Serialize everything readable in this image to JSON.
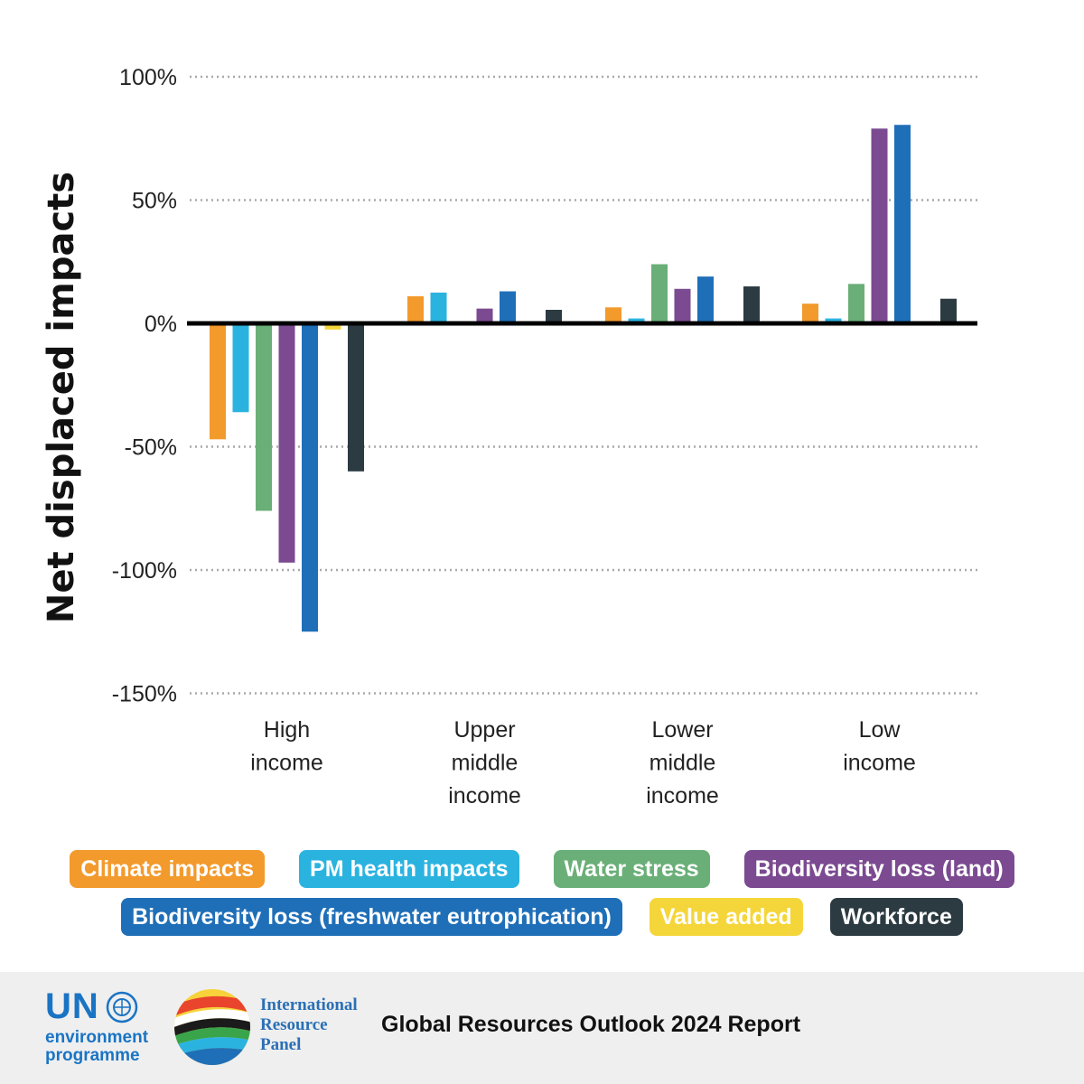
{
  "chart_data": {
    "type": "bar",
    "ylabel": "Net displaced impacts",
    "ylim": [
      -150,
      100
    ],
    "yticks": [
      100,
      50,
      0,
      -50,
      -100,
      -150
    ],
    "ytick_labels": [
      "100%",
      "50%",
      "0%",
      "-50%",
      "-100%",
      "-150%"
    ],
    "grid": true,
    "legend_placement": "bottom",
    "categories": [
      [
        "High",
        "income"
      ],
      [
        "Upper",
        "middle",
        "income"
      ],
      [
        "Lower",
        "middle",
        "income"
      ],
      [
        "Low",
        "income"
      ]
    ],
    "series": [
      {
        "name": "Climate impacts",
        "color": "#f39a2c",
        "values": [
          -47,
          11,
          6.5,
          8
        ]
      },
      {
        "name": "PM health impacts",
        "color": "#2bb3e0",
        "values": [
          -36,
          12.5,
          2,
          2
        ]
      },
      {
        "name": "Water stress",
        "color": "#6aaf77",
        "values": [
          -76,
          0,
          24,
          16
        ]
      },
      {
        "name": "Biodiversity loss (land)",
        "color": "#7b4a91",
        "values": [
          -97,
          6,
          14,
          79
        ]
      },
      {
        "name": "Biodiversity loss (freshwater eutrophication)",
        "color": "#1f6fb8",
        "values": [
          -125,
          13,
          19,
          80.5
        ]
      },
      {
        "name": "Value added",
        "color": "#f5d63a",
        "values": [
          -2.5,
          0,
          0,
          0
        ]
      },
      {
        "name": "Workforce",
        "color": "#2c3a42",
        "values": [
          -60,
          5.5,
          15,
          10
        ]
      }
    ]
  },
  "footer": {
    "unep_un": "UN",
    "unep_line1": "environment",
    "unep_line2": "programme",
    "irp_line1": "International",
    "irp_line2": "Resource",
    "irp_line3": "Panel",
    "report_title": "Global Resources Outlook 2024 Report"
  }
}
